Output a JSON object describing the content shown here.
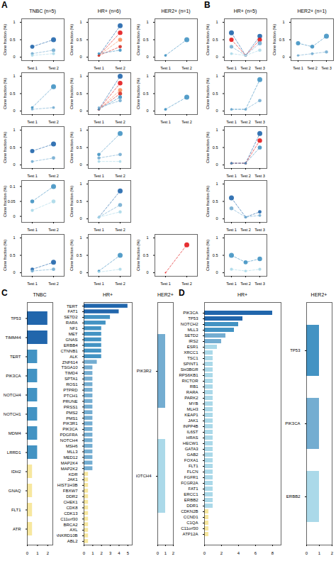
{
  "chart_data": [
    {
      "type": "line",
      "title": "TNBC (n=5)",
      "annotations": [
        "A"
      ],
      "marker": "circle",
      "line_style": "dashed",
      "ylabel": "Clone fraction (%)",
      "categories": [
        "Test 1",
        "Test 2"
      ],
      "ylim": [
        -0.1,
        1.1
      ],
      "yticks": [
        0,
        0.5,
        1
      ],
      "series": [
        {
          "color": "#2166ac",
          "values": [
            0.3,
            0.5
          ]
        },
        {
          "color": "#74add1",
          "values": [
            0.1,
            0.2
          ]
        },
        {
          "color": "#abd9e9",
          "values": [
            0.05,
            0.1
          ]
        }
      ]
    },
    {
      "type": "line",
      "marker": "circle",
      "line_style": "dashed",
      "ylabel": "Clone fraction (%)",
      "categories": [
        "Test 1",
        "Test 2"
      ],
      "ylim": [
        -0.1,
        1.1
      ],
      "yticks": [
        0,
        0.5,
        1
      ],
      "series": [
        {
          "color": "#4393c3",
          "values": [
            0.1,
            0.7
          ]
        },
        {
          "color": "#74add1",
          "values": [
            0.05,
            0.1
          ]
        }
      ]
    },
    {
      "type": "line",
      "marker": "circle",
      "line_style": "dashed",
      "ylabel": "Clone fraction (%)",
      "categories": [
        "Test 1",
        "Test 2"
      ],
      "ylim": [
        -0.1,
        1.1
      ],
      "yticks": [
        0,
        0.5,
        1
      ],
      "series": [
        {
          "color": "#2166ac",
          "values": [
            0.4,
            0.6
          ]
        },
        {
          "color": "#74add1",
          "values": [
            0.1,
            0.2
          ]
        }
      ]
    },
    {
      "type": "line",
      "marker": "circle",
      "line_style": "dashed",
      "ylabel": "Clone fraction (%)",
      "categories": [
        "Test 1",
        "Test 2"
      ],
      "ylim": [
        -0.02,
        0.12
      ],
      "yticks": [
        0,
        0.05,
        0.1
      ],
      "series": [
        {
          "color": "#4393c3",
          "values": [
            0.05,
            0.1
          ]
        },
        {
          "color": "#abd9e9",
          "values": [
            0.02,
            0.05
          ]
        }
      ]
    },
    {
      "type": "line",
      "marker": "circle",
      "line_style": "dashed",
      "ylabel": "Clone fraction (%)",
      "categories": [
        "Test 1",
        "Test 2"
      ],
      "ylim": [
        -0.1,
        1.1
      ],
      "yticks": [
        0,
        0.5,
        1
      ],
      "series": [
        {
          "color": "#2166ac",
          "values": [
            0.1,
            0.3
          ]
        },
        {
          "color": "#74add1",
          "values": [
            0.05,
            0.1
          ]
        }
      ]
    },
    {
      "type": "line",
      "title": "HR+ (n=6)",
      "marker": "circle",
      "line_style": "dashed",
      "ylabel": "Clone fraction (%)",
      "categories": [
        "Test 1",
        "Test 2"
      ],
      "ylim": [
        -0.1,
        1.1
      ],
      "yticks": [
        0,
        0.5,
        1
      ],
      "series": [
        {
          "color": "#2166ac",
          "values": [
            0.05,
            0.9
          ]
        },
        {
          "color": "#e31a1c",
          "values": [
            0.05,
            0.7
          ]
        },
        {
          "color": "#fc8d59",
          "values": [
            0.05,
            0.5
          ]
        },
        {
          "color": "#d73027",
          "values": [
            0.05,
            0.3
          ]
        },
        {
          "color": "#4393c3",
          "values": [
            0.1,
            0.2
          ]
        }
      ]
    },
    {
      "type": "line",
      "marker": "circle",
      "line_style": "dashed",
      "ylabel": "Clone fraction (%)",
      "categories": [
        "Test 1",
        "Test 2"
      ],
      "ylim": [
        -0.1,
        1.1
      ],
      "yticks": [
        0,
        0.5,
        1
      ],
      "series": [
        {
          "color": "#2166ac",
          "values": [
            0.05,
            1.0
          ]
        },
        {
          "color": "#e31a1c",
          "values": [
            0.05,
            0.8
          ]
        },
        {
          "color": "#fc8d59",
          "values": [
            0.05,
            0.6
          ]
        },
        {
          "color": "#d73027",
          "values": [
            0.05,
            0.5
          ]
        },
        {
          "color": "#4393c3",
          "values": [
            0.05,
            0.4
          ]
        },
        {
          "color": "#74add1",
          "values": [
            0.1,
            0.3
          ]
        }
      ]
    },
    {
      "type": "line",
      "marker": "circle",
      "line_style": "dashed",
      "ylabel": "Clone fraction (%)",
      "categories": [
        "Test 1",
        "Test 2"
      ],
      "ylim": [
        -0.1,
        1.1
      ],
      "yticks": [
        0,
        0.5,
        1
      ],
      "series": [
        {
          "color": "#4393c3",
          "values": [
            0.3,
            0.9
          ]
        },
        {
          "color": "#74add1",
          "values": [
            0.2,
            0.3
          ]
        },
        {
          "color": "#abd9e9",
          "values": [
            0.1,
            0.1
          ]
        }
      ]
    },
    {
      "type": "line",
      "marker": "circle",
      "line_style": "dashed",
      "ylabel": "Clone fraction (%)",
      "categories": [
        "Test 1",
        "Test 2"
      ],
      "ylim": [
        -0.1,
        1.1
      ],
      "yticks": [
        0,
        0.5,
        1
      ],
      "series": [
        {
          "color": "#2166ac",
          "values": [
            0.05,
            0.8
          ]
        },
        {
          "color": "#74add1",
          "values": [
            0.05,
            0.4
          ]
        },
        {
          "color": "#abd9e9",
          "values": [
            0.05,
            0.2
          ]
        }
      ]
    },
    {
      "type": "line",
      "marker": "circle",
      "line_style": "dashed",
      "ylabel": "Clone fraction (%)",
      "categories": [
        "Test 1",
        "Test 2"
      ],
      "ylim": [
        -0.1,
        1.1
      ],
      "yticks": [
        0,
        0.5,
        1
      ],
      "series": [
        {
          "color": "#4393c3",
          "values": [
            0.05,
            0.5
          ]
        },
        {
          "color": "#abd9e9",
          "values": [
            0.02,
            0.1
          ]
        }
      ]
    },
    {
      "type": "line",
      "title": "HER2+ (n=1)",
      "marker": "circle",
      "line_style": "dashed",
      "ylabel": "Clone fraction (%)",
      "categories": [
        "Test 1",
        "Test 2"
      ],
      "ylim": [
        -0.1,
        1.1
      ],
      "yticks": [
        0,
        0.5,
        1
      ],
      "series": [
        {
          "color": "#4393c3",
          "values": [
            0.05,
            0.5
          ]
        }
      ]
    },
    {
      "type": "line",
      "marker": "circle",
      "line_style": "dashed",
      "ylabel": "Clone fraction (%)",
      "categories": [
        "Test 1",
        "Test 2"
      ],
      "ylim": [
        -0.1,
        1.1
      ],
      "yticks": [
        0,
        0.5,
        1
      ],
      "series": [
        {
          "color": "#4393c3",
          "values": [
            0.05,
            0.4
          ]
        }
      ]
    },
    {
      "type": "line",
      "marker": "circle",
      "line_style": "dashed",
      "ylabel": "Clone fraction (%)",
      "categories": [
        "Test 1",
        "Test 2"
      ],
      "ylim": [
        -0.1,
        1.1
      ],
      "yticks": [
        0,
        0.5,
        1
      ],
      "series": [
        {
          "color": "#e31a1c",
          "values": [
            0.0,
            0.8
          ]
        }
      ]
    },
    {
      "type": "line",
      "title": "HR+ (n=5)",
      "annotations": [
        "B"
      ],
      "marker": "circle",
      "line_style": "dashed",
      "ylabel": "Clone fraction (%)",
      "categories": [
        "Test 1",
        "Test 2",
        "Test 3"
      ],
      "ylim": [
        -0.1,
        1.1
      ],
      "yticks": [
        0,
        0.5,
        1
      ],
      "series": [
        {
          "color": "#2166ac",
          "values": [
            0.7,
            0.05,
            0.6
          ]
        },
        {
          "color": "#e31a1c",
          "values": [
            0.5,
            0.05,
            0.5
          ]
        },
        {
          "color": "#74add1",
          "values": [
            0.3,
            0.05,
            0.4
          ]
        },
        {
          "color": "#abd9e9",
          "values": [
            0.1,
            0.05,
            0.2
          ]
        }
      ]
    },
    {
      "type": "line",
      "marker": "circle",
      "line_style": "dashed",
      "ylabel": "Clone fraction (%)",
      "categories": [
        "Test 1",
        "Test 2",
        "Test 3"
      ],
      "ylim": [
        -0.1,
        1.1
      ],
      "yticks": [
        0,
        0.5,
        1
      ],
      "series": [
        {
          "color": "#4393c3",
          "values": [
            0.05,
            0.05,
            0.9
          ]
        },
        {
          "color": "#74add1",
          "values": [
            0.05,
            0.05,
            0.3
          ]
        }
      ]
    },
    {
      "type": "line",
      "marker": "circle",
      "line_style": "dashed",
      "ylabel": "Clone fraction (%)",
      "categories": [
        "Test 1",
        "Test 2",
        "Test 3"
      ],
      "ylim": [
        -0.1,
        1.1
      ],
      "yticks": [
        0,
        0.5,
        1
      ],
      "series": [
        {
          "color": "#2166ac",
          "values": [
            0.05,
            0.05,
            0.9
          ]
        },
        {
          "color": "#e31a1c",
          "values": [
            0.05,
            0.05,
            0.7
          ]
        },
        {
          "color": "#4393c3",
          "values": [
            0.05,
            0.05,
            0.5
          ]
        }
      ]
    },
    {
      "type": "line",
      "marker": "circle",
      "line_style": "dashed",
      "ylabel": "Clone fraction (%)",
      "categories": [
        "Test 1",
        "Test 2",
        "Test 3"
      ],
      "ylim": [
        -0.1,
        1.1
      ],
      "yticks": [
        0,
        0.5,
        1
      ],
      "series": [
        {
          "color": "#2166ac",
          "values": [
            0.6,
            0.05,
            0.2
          ]
        },
        {
          "color": "#74add1",
          "values": [
            0.3,
            0.05,
            0.1
          ]
        }
      ]
    },
    {
      "type": "line",
      "marker": "circle",
      "line_style": "dashed",
      "ylabel": "Clone fraction (%)",
      "categories": [
        "Test 1",
        "Test 2",
        "Test 3"
      ],
      "ylim": [
        -0.1,
        1.1
      ],
      "yticks": [
        0,
        0.5,
        1
      ],
      "series": [
        {
          "color": "#4393c3",
          "values": [
            0.5,
            0.3,
            0.4
          ]
        },
        {
          "color": "#abd9e9",
          "values": [
            0.1,
            0.05,
            0.1
          ]
        }
      ]
    },
    {
      "type": "line",
      "title": "HER2+ (n=1)",
      "marker": "circle",
      "line_style": "dashed",
      "ylabel": "Clone fraction (%)",
      "categories": [
        "Test 1",
        "Test 2",
        "Test 3"
      ],
      "ylim": [
        -0.1,
        1.1
      ],
      "yticks": [
        0,
        0.5,
        1
      ],
      "series": [
        {
          "color": "#4393c3",
          "values": [
            0.4,
            0.3,
            0.6
          ]
        },
        {
          "color": "#74add1",
          "values": [
            0.05,
            0.1,
            0.15
          ]
        }
      ]
    },
    {
      "type": "bar",
      "orientation": "horizontal",
      "title": "TNBC",
      "annotations": [
        "C"
      ],
      "categories": [
        "TP53",
        "TIMM44",
        "TERT",
        "PIK3CA",
        "NOTCH4",
        "NOTCH1",
        "MDM4",
        "LRRD1",
        "IDH2",
        "GNAQ",
        "FLT1",
        "ATR"
      ],
      "values": [
        2,
        2,
        1,
        1,
        1,
        1,
        1,
        1,
        0.5,
        0.5,
        0.5,
        0.5
      ],
      "colors": [
        "#2166ac",
        "#2166ac",
        "#4393c3",
        "#4393c3",
        "#4393c3",
        "#4393c3",
        "#4393c3",
        "#4393c3",
        "#f7e79e",
        "#f7e79e",
        "#f7e79e",
        "#f7e79e"
      ],
      "xlim": [
        0,
        2.5
      ],
      "xticks": [
        0,
        1,
        2
      ]
    },
    {
      "type": "bar",
      "orientation": "horizontal",
      "title": "HR+",
      "categories": [
        "TERT",
        "FAT1",
        "SETD2",
        "RARA",
        "NF1",
        "MET",
        "GNAS",
        "ERBB4",
        "CTNNB1",
        "ALK",
        "ZNF614",
        "TSGA10",
        "TIMD4",
        "SPTA1",
        "ROS1",
        "PTPRD",
        "PTCH1",
        "PRUNE",
        "PRSS1",
        "PMS2",
        "PMS1",
        "PIK3R1",
        "PIK3CA",
        "PDGFRA",
        "NOTCH4",
        "MSH6",
        "MLL3",
        "MED12",
        "MAP2K4",
        "MAP2K2",
        "KDR",
        "JAK1",
        "HIST1H3B",
        "FBXW7",
        "DDR2",
        "CHEK1",
        "CDK8",
        "CDK13",
        "C11orf30",
        "BRCA2",
        "AXL",
        "ANKRD10B",
        "ABL2"
      ],
      "values": [
        5,
        4,
        3,
        2.5,
        2,
        2,
        2,
        2,
        2,
        2,
        1.5,
        1,
        1,
        1,
        1,
        1,
        1,
        1,
        1,
        1,
        1,
        1,
        1,
        1,
        1,
        1,
        1,
        1,
        1,
        1,
        0.5,
        0.5,
        0.5,
        0.5,
        0.5,
        0.5,
        0.5,
        0.5,
        0.5,
        0.5,
        0.5,
        0.5,
        0.5
      ],
      "colors": [
        "#2166ac",
        "#2166ac",
        "#4393c3",
        "#4393c3",
        "#4393c3",
        "#4393c3",
        "#4393c3",
        "#4393c3",
        "#4393c3",
        "#4393c3",
        "#74add1",
        "#74add1",
        "#74add1",
        "#74add1",
        "#74add1",
        "#74add1",
        "#74add1",
        "#74add1",
        "#74add1",
        "#74add1",
        "#74add1",
        "#74add1",
        "#74add1",
        "#74add1",
        "#74add1",
        "#74add1",
        "#74add1",
        "#74add1",
        "#74add1",
        "#74add1",
        "#f7e79e",
        "#f7e79e",
        "#f7e79e",
        "#f7e79e",
        "#f7e79e",
        "#f7e79e",
        "#f7e79e",
        "#f7e79e",
        "#f7e79e",
        "#f7e79e",
        "#f7e79e",
        "#f7e79e",
        "#f7e79e"
      ],
      "xlim": [
        0,
        5.5
      ],
      "xticks": [
        0,
        1,
        2,
        3,
        4,
        5
      ]
    },
    {
      "type": "bar",
      "orientation": "horizontal",
      "title": "HER2+",
      "categories": [
        "PIK3R2",
        "NOTCH4"
      ],
      "values": [
        1,
        1
      ],
      "colors": [
        "#74add1",
        "#abd9e9"
      ],
      "xlim": [
        0,
        2
      ],
      "xticks": [
        0,
        1,
        2
      ]
    },
    {
      "type": "bar",
      "orientation": "horizontal",
      "title": "HR+",
      "annotations": [
        "D"
      ],
      "categories": [
        "PIK3CA",
        "TP53",
        "NOTCH2",
        "MLL3",
        "SETD2",
        "IRS2",
        "ESR1",
        "XRCC1",
        "TSC1",
        "SPINT1",
        "SH3BGR",
        "RPS6KB1",
        "RICTOR",
        "RB1",
        "RARA",
        "PARK2",
        "MYB",
        "MLH3",
        "KEAP1",
        "JAK1",
        "INPP4B",
        "IL6ST",
        "HRAS",
        "HECW1",
        "GATA3",
        "GAB2",
        "FOXA1",
        "FLT1",
        "FLCN",
        "FGFR1",
        "FCGR2A",
        "FAT1",
        "ERCC1",
        "ERBB2",
        "DDR1",
        "CDKN2B",
        "CCND1",
        "C1QA",
        "C11orf30",
        "ATP12A"
      ],
      "values": [
        8,
        4.5,
        4,
        3.5,
        2.5,
        2,
        1.5,
        1,
        1,
        1,
        1,
        1,
        1,
        1,
        1,
        1,
        1,
        1,
        1,
        1,
        1,
        1,
        1,
        1,
        1,
        1,
        1,
        1,
        1,
        1,
        1,
        1,
        1,
        1,
        1,
        0.5,
        0.5,
        0.5,
        0.5,
        0.5
      ],
      "colors": [
        "#2166ac",
        "#2166ac",
        "#4393c3",
        "#4393c3",
        "#74add1",
        "#74add1",
        "#abd9e9",
        "#abd9e9",
        "#abd9e9",
        "#abd9e9",
        "#abd9e9",
        "#abd9e9",
        "#abd9e9",
        "#abd9e9",
        "#abd9e9",
        "#abd9e9",
        "#abd9e9",
        "#abd9e9",
        "#abd9e9",
        "#abd9e9",
        "#abd9e9",
        "#abd9e9",
        "#abd9e9",
        "#abd9e9",
        "#abd9e9",
        "#abd9e9",
        "#abd9e9",
        "#abd9e9",
        "#abd9e9",
        "#abd9e9",
        "#abd9e9",
        "#abd9e9",
        "#abd9e9",
        "#abd9e9",
        "#abd9e9",
        "#f7e79e",
        "#f7e79e",
        "#f7e79e",
        "#f7e79e",
        "#f7e79e"
      ],
      "xlim": [
        0,
        9
      ],
      "xticks": [
        0,
        2,
        4,
        6,
        8
      ]
    },
    {
      "type": "bar",
      "orientation": "horizontal",
      "title": "HER2+",
      "categories": [
        "TP53",
        "PIK3CA",
        "ERBB2"
      ],
      "values": [
        1,
        1,
        1
      ],
      "colors": [
        "#4393c3",
        "#74add1",
        "#abd9e9"
      ],
      "xlim": [
        0,
        2
      ],
      "xticks": [
        0,
        1,
        2
      ]
    }
  ]
}
